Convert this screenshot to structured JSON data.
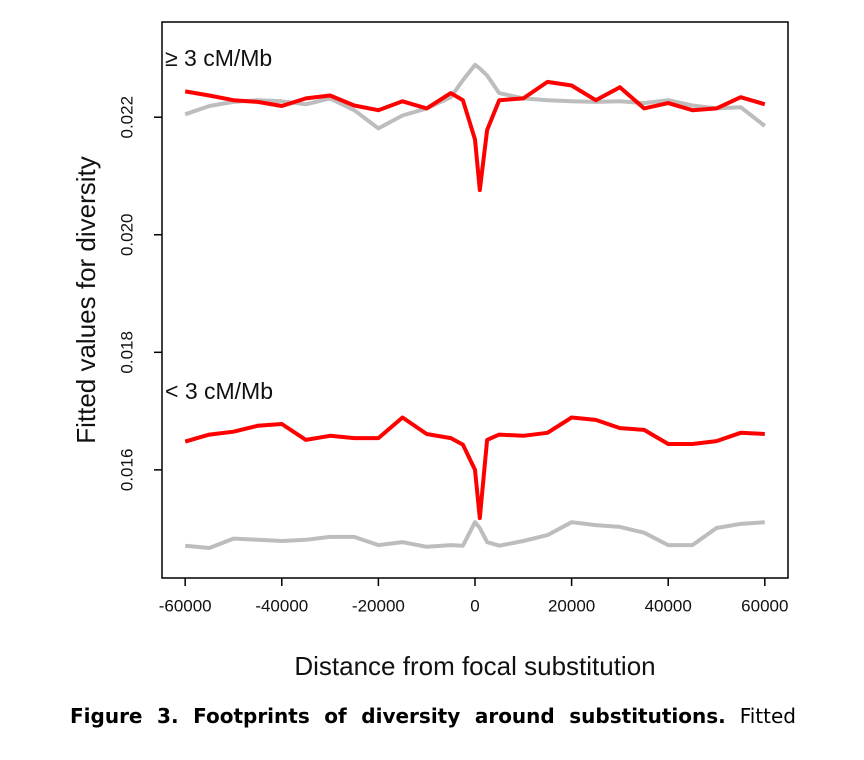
{
  "chart_data": {
    "type": "line",
    "y_label": "Fitted values for diversity",
    "x_label": "Distance from focal substitution",
    "annotations": [
      "≥ 3 cM/Mb",
      "< 3 cM/Mb"
    ],
    "x": [
      -60000,
      -55000,
      -50000,
      -45000,
      -40000,
      -35000,
      -30000,
      -25000,
      -20000,
      -15000,
      -10000,
      -5000,
      -2500,
      0,
      1000,
      2500,
      5000,
      10000,
      15000,
      20000,
      25000,
      30000,
      35000,
      40000,
      45000,
      50000,
      55000,
      60000
    ],
    "series": [
      {
        "color": "#bdbdbd",
        "values": [
          0.02205,
          0.02219,
          0.02226,
          0.02229,
          0.02227,
          0.02222,
          0.02232,
          0.02212,
          0.02181,
          0.02203,
          0.02215,
          0.02234,
          0.02263,
          0.02289,
          0.02283,
          0.02271,
          0.02241,
          0.02232,
          0.02229,
          0.02227,
          0.02226,
          0.02227,
          0.02224,
          0.02229,
          0.0222,
          0.02215,
          0.02217,
          0.02185
        ]
      },
      {
        "color": "#ff0000",
        "values": [
          0.02244,
          0.02237,
          0.02229,
          0.02226,
          0.02219,
          0.02232,
          0.02237,
          0.0222,
          0.02212,
          0.02227,
          0.02215,
          0.02241,
          0.02229,
          0.02162,
          0.02076,
          0.02178,
          0.02229,
          0.02232,
          0.0226,
          0.02254,
          0.02229,
          0.02251,
          0.02215,
          0.02224,
          0.02212,
          0.02215,
          0.02234,
          0.02222
        ]
      },
      {
        "color": "#bdbdbd",
        "values": [
          0.01471,
          0.01467,
          0.01483,
          0.01481,
          0.01479,
          0.01481,
          0.01486,
          0.01486,
          0.01472,
          0.01477,
          0.01469,
          0.01472,
          0.01471,
          0.01511,
          0.01501,
          0.01477,
          0.01471,
          0.01479,
          0.01489,
          0.01511,
          0.01506,
          0.01503,
          0.01493,
          0.01472,
          0.01472,
          0.01501,
          0.01508,
          0.01511
        ]
      },
      {
        "color": "#ff0000",
        "values": [
          0.01648,
          0.0166,
          0.01665,
          0.01675,
          0.01678,
          0.01651,
          0.01658,
          0.01654,
          0.01654,
          0.01689,
          0.01661,
          0.01654,
          0.01643,
          0.016,
          0.01518,
          0.01651,
          0.0166,
          0.01658,
          0.01663,
          0.01689,
          0.01685,
          0.01671,
          0.01668,
          0.01644,
          0.01644,
          0.01649,
          0.01663,
          0.01661
        ]
      }
    ],
    "xlim": [
      -64800,
      64800
    ],
    "xticks": [
      -60000,
      -40000,
      -20000,
      0,
      20000,
      40000,
      60000
    ],
    "ylim": [
      0.01416,
      0.02362
    ],
    "yticks": [
      0.016,
      0.018,
      {
        "value": 0.02,
        "label": "0.020"
      },
      0.022
    ]
  },
  "caption": {
    "title": "Figure 3. Footprints of diversity around substitutions.",
    "text": "Fitted"
  }
}
